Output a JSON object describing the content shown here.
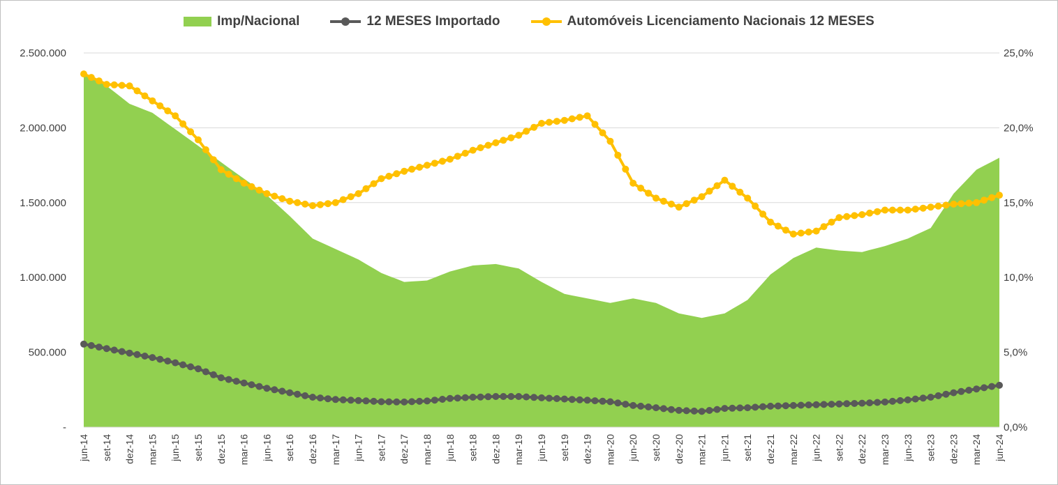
{
  "chart_data": {
    "type": "area-line-combo",
    "title": "",
    "colors": {
      "area": "#92D050",
      "importado": "#595959",
      "nacionais": "#FFC000",
      "grid": "#D9D9D9",
      "frame": "#BFBFBF"
    },
    "legend": {
      "position": "top",
      "items": [
        {
          "key": "area",
          "label": "Imp/Nacional"
        },
        {
          "key": "importado",
          "label": "12 MESES Importado"
        },
        {
          "key": "nacionais",
          "label": "Automóveis Licenciamento Nacionais 12 MESES"
        }
      ]
    },
    "y_left": {
      "min": 0,
      "max": 2500000,
      "ticks": [
        "-",
        "500.000",
        "1.000.000",
        "1.500.000",
        "2.000.000",
        "2.500.000"
      ]
    },
    "y_right": {
      "min": 0,
      "max": 25,
      "ticks": [
        "0,0%",
        "5,0%",
        "10,0%",
        "15,0%",
        "20,0%",
        "25,0%"
      ]
    },
    "grid": true,
    "x_tick_labels": [
      "jun-14",
      "set-14",
      "dez-14",
      "mar-15",
      "jun-15",
      "set-15",
      "dez-15",
      "mar-16",
      "jun-16",
      "set-16",
      "dez-16",
      "mar-17",
      "jun-17",
      "set-17",
      "dez-17",
      "mar-18",
      "jun-18",
      "set-18",
      "dez-18",
      "mar-19",
      "jun-19",
      "set-19",
      "dez-19",
      "mar-20",
      "jun-20",
      "set-20",
      "dez-20",
      "mar-21",
      "jun-21",
      "set-21",
      "dez-21",
      "mar-22",
      "jun-22",
      "set-22",
      "dez-22",
      "mar-23",
      "jun-23",
      "set-23",
      "dez-23",
      "mar-24",
      "jun-24"
    ],
    "series": [
      {
        "name": "Imp/Nacional",
        "type": "area",
        "axis": "right",
        "quarterly_values": [
          23.7,
          22.8,
          21.6,
          21.0,
          19.9,
          18.8,
          17.7,
          16.6,
          15.5,
          14.1,
          12.6,
          11.9,
          11.2,
          10.3,
          9.7,
          9.8,
          10.4,
          10.8,
          10.9,
          10.6,
          9.7,
          8.9,
          8.6,
          8.3,
          8.6,
          8.3,
          7.6,
          7.3,
          7.6,
          8.5,
          10.2,
          11.3,
          12.0,
          11.8,
          11.7,
          12.1,
          12.6,
          13.3,
          15.6,
          17.2,
          18.0
        ]
      },
      {
        "name": "12 MESES Importado",
        "type": "line",
        "axis": "left",
        "quarterly_values": [
          555000,
          525000,
          495000,
          465000,
          430000,
          390000,
          330000,
          295000,
          260000,
          230000,
          200000,
          185000,
          178000,
          170000,
          168000,
          175000,
          192000,
          200000,
          205000,
          205000,
          196000,
          188000,
          180000,
          170000,
          145000,
          130000,
          112000,
          105000,
          125000,
          130000,
          140000,
          145000,
          150000,
          155000,
          160000,
          168000,
          182000,
          200000,
          230000,
          255000,
          280000
        ]
      },
      {
        "name": "Automóveis Licenciamento Nacionais 12 MESES",
        "type": "line",
        "axis": "right",
        "quarterly_values": [
          23.6,
          22.9,
          22.8,
          21.8,
          20.8,
          19.2,
          17.2,
          16.3,
          15.6,
          15.1,
          14.8,
          15.0,
          15.6,
          16.6,
          17.1,
          17.5,
          17.9,
          18.5,
          19.0,
          19.5,
          20.3,
          20.5,
          20.8,
          19.1,
          16.3,
          15.3,
          14.7,
          15.4,
          16.5,
          15.3,
          13.7,
          12.9,
          13.1,
          14.0,
          14.2,
          14.5,
          14.5,
          14.7,
          14.9,
          15.0,
          15.5
        ]
      }
    ]
  }
}
